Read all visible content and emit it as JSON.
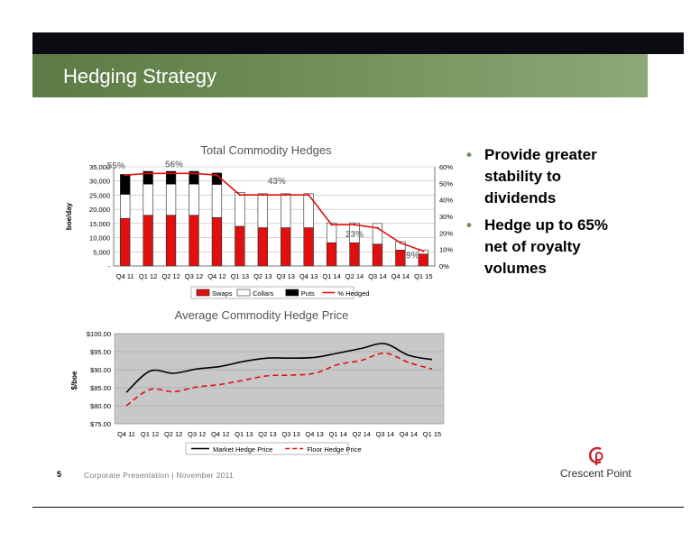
{
  "slide": {
    "title": "Hedging Strategy",
    "page_number": "5",
    "footer": "Corporate Presentation | November 2011",
    "company": "Crescent Point",
    "bullets": [
      "Provide greater stability to dividends",
      "Hedge up to 65% net of royalty volumes"
    ]
  },
  "colors": {
    "swaps": "#e01010",
    "collars": "#ffffff",
    "puts": "#000000",
    "hedged_line": "#e01010",
    "market": "#000000",
    "floor": "#e01010",
    "title_bar": "#6f8f56"
  },
  "chart_data": [
    {
      "type": "bar",
      "title": "Total Commodity Hedges",
      "ylabel": "boe/day",
      "categories": [
        "Q4 11",
        "Q1 12",
        "Q2 12",
        "Q3 12",
        "Q4 12",
        "Q1 13",
        "Q2 13",
        "Q3 13",
        "Q4 13",
        "Q1 14",
        "Q2 14",
        "Q3 14",
        "Q4 14",
        "Q1 15"
      ],
      "series": [
        {
          "name": "Swaps",
          "values": [
            16800,
            17900,
            17900,
            17900,
            17100,
            14000,
            13500,
            13500,
            13500,
            8200,
            8200,
            7700,
            5600,
            4200
          ]
        },
        {
          "name": "Collars",
          "values": [
            8500,
            11000,
            11000,
            11000,
            11700,
            12000,
            12000,
            12000,
            12000,
            7000,
            7000,
            7300,
            3000,
            1300
          ]
        },
        {
          "name": "Puts",
          "values": [
            7000,
            4500,
            4500,
            4500,
            4000,
            0,
            0,
            0,
            0,
            0,
            0,
            0,
            0,
            0
          ]
        }
      ],
      "line": {
        "name": "% Hedged",
        "axis": "right",
        "values": [
          55,
          56,
          56,
          56,
          55,
          43,
          43,
          43,
          43,
          25,
          25,
          23,
          14,
          9
        ]
      },
      "annotations": [
        "55%",
        "56%",
        "43%",
        "23%",
        "9%"
      ],
      "y_ticks": [
        "-",
        "5,000",
        "10,000",
        "15,000",
        "20,000",
        "25,000",
        "30,000",
        "35,000"
      ],
      "y2_ticks": [
        "0%",
        "10%",
        "20%",
        "30%",
        "40%",
        "50%",
        "60%"
      ],
      "ylim": [
        0,
        35000
      ],
      "y2lim": [
        0,
        60
      ],
      "legend_position": "bottom"
    },
    {
      "type": "line",
      "title": "Average Commodity Hedge Price",
      "ylabel": "$/boe",
      "categories": [
        "Q4 11",
        "Q1 12",
        "Q2 12",
        "Q3 12",
        "Q4 12",
        "Q1 13",
        "Q2 13",
        "Q3 13",
        "Q4 13",
        "Q1 14",
        "Q2 14",
        "Q3 14",
        "Q4 14",
        "Q1 15"
      ],
      "series": [
        {
          "name": "Market Hedge Price",
          "values": [
            83.7,
            89.6,
            89.0,
            90.2,
            90.9,
            92.3,
            93.2,
            93.2,
            93.4,
            94.6,
            95.9,
            97.2,
            94.0,
            92.8
          ]
        },
        {
          "name": "Floor Hedge Price",
          "values": [
            80.0,
            84.5,
            83.9,
            85.2,
            85.9,
            87.1,
            88.3,
            88.5,
            89.0,
            91.4,
            92.6,
            94.6,
            92.0,
            90.2
          ]
        }
      ],
      "y_ticks": [
        "$75.00",
        "$80.00",
        "$85.00",
        "$90.00",
        "$95.00",
        "$100.00"
      ],
      "ylim": [
        75,
        100
      ],
      "legend_position": "bottom"
    }
  ]
}
